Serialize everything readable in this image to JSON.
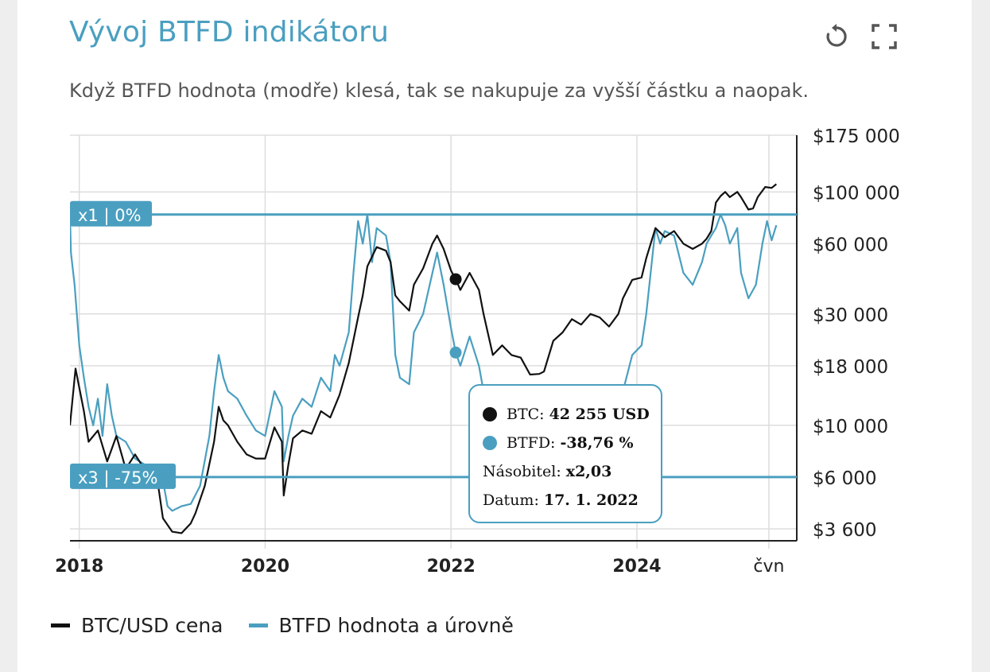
{
  "header": {
    "title": "Vývoj BTFD indikátoru",
    "subtitle": "Když BTFD hodnota (modře) klesá, tak se nakupuje za vyšší částku a naopak.",
    "reset_icon": "reset-icon",
    "fullscreen_icon": "fullscreen-icon"
  },
  "colors": {
    "btc": "#111111",
    "btfd": "#4a9fc0",
    "grid": "#dddddd",
    "axis": "#222222"
  },
  "chart_data": {
    "type": "line",
    "x_ticks": [
      {
        "label": "2018",
        "year": 2018.0
      },
      {
        "label": "2020",
        "year": 2020.0
      },
      {
        "label": "2022",
        "year": 2022.0
      },
      {
        "label": "2024",
        "year": 2024.0
      },
      {
        "label": "čvn",
        "year": 2025.42
      }
    ],
    "y_ticks": [
      {
        "label": "$175 000",
        "value": 175000
      },
      {
        "label": "$100 000",
        "value": 100000
      },
      {
        "label": "$60 000",
        "value": 60000
      },
      {
        "label": "$30 000",
        "value": 30000
      },
      {
        "label": "$18 000",
        "value": 18000
      },
      {
        "label": "$10 000",
        "value": 10000
      },
      {
        "label": "$6 000",
        "value": 6000
      },
      {
        "label": "$3 600",
        "value": 3600
      }
    ],
    "y_scale": "log",
    "ylim": [
      3200,
      175000
    ],
    "xlim": [
      2017.9,
      2025.72
    ],
    "levels": [
      {
        "label": "x1 | 0%",
        "value": 80000
      },
      {
        "label": "x3 | -75%",
        "value": 6000
      }
    ],
    "series": [
      {
        "name": "BTC/USD cena",
        "key": "btc",
        "points": [
          [
            2017.9,
            10000
          ],
          [
            2017.96,
            17500
          ],
          [
            2018.05,
            11500
          ],
          [
            2018.1,
            8500
          ],
          [
            2018.2,
            9500
          ],
          [
            2018.3,
            7000
          ],
          [
            2018.4,
            9000
          ],
          [
            2018.5,
            6500
          ],
          [
            2018.6,
            7500
          ],
          [
            2018.7,
            6500
          ],
          [
            2018.8,
            6300
          ],
          [
            2018.85,
            5500
          ],
          [
            2018.9,
            4000
          ],
          [
            2019.0,
            3500
          ],
          [
            2019.1,
            3450
          ],
          [
            2019.2,
            3800
          ],
          [
            2019.25,
            4200
          ],
          [
            2019.35,
            5500
          ],
          [
            2019.45,
            8500
          ],
          [
            2019.5,
            12000
          ],
          [
            2019.55,
            10500
          ],
          [
            2019.6,
            10000
          ],
          [
            2019.7,
            8500
          ],
          [
            2019.8,
            7500
          ],
          [
            2019.9,
            7200
          ],
          [
            2020.0,
            7200
          ],
          [
            2020.1,
            9800
          ],
          [
            2020.18,
            8500
          ],
          [
            2020.2,
            5000
          ],
          [
            2020.25,
            6800
          ],
          [
            2020.3,
            8800
          ],
          [
            2020.4,
            9500
          ],
          [
            2020.5,
            9200
          ],
          [
            2020.6,
            11500
          ],
          [
            2020.7,
            10800
          ],
          [
            2020.8,
            13500
          ],
          [
            2020.9,
            18500
          ],
          [
            2021.0,
            29000
          ],
          [
            2021.05,
            36000
          ],
          [
            2021.1,
            48000
          ],
          [
            2021.2,
            58000
          ],
          [
            2021.3,
            56000
          ],
          [
            2021.35,
            50000
          ],
          [
            2021.4,
            36000
          ],
          [
            2021.45,
            34000
          ],
          [
            2021.55,
            31000
          ],
          [
            2021.6,
            40000
          ],
          [
            2021.7,
            47000
          ],
          [
            2021.8,
            60000
          ],
          [
            2021.85,
            65000
          ],
          [
            2021.92,
            57000
          ],
          [
            2022.0,
            46000
          ],
          [
            2022.05,
            42255
          ],
          [
            2022.1,
            38000
          ],
          [
            2022.2,
            45000
          ],
          [
            2022.3,
            38000
          ],
          [
            2022.35,
            30000
          ],
          [
            2022.45,
            20000
          ],
          [
            2022.55,
            22000
          ],
          [
            2022.65,
            20000
          ],
          [
            2022.75,
            19500
          ],
          [
            2022.85,
            16500
          ],
          [
            2022.95,
            16600
          ],
          [
            2023.0,
            17000
          ],
          [
            2023.1,
            23000
          ],
          [
            2023.2,
            25000
          ],
          [
            2023.3,
            28500
          ],
          [
            2023.4,
            27000
          ],
          [
            2023.5,
            30000
          ],
          [
            2023.6,
            29000
          ],
          [
            2023.7,
            26500
          ],
          [
            2023.8,
            30000
          ],
          [
            2023.85,
            35000
          ],
          [
            2023.95,
            42000
          ],
          [
            2024.05,
            43000
          ],
          [
            2024.1,
            52000
          ],
          [
            2024.2,
            70000
          ],
          [
            2024.3,
            64000
          ],
          [
            2024.4,
            68000
          ],
          [
            2024.5,
            60000
          ],
          [
            2024.6,
            57000
          ],
          [
            2024.7,
            60000
          ],
          [
            2024.75,
            63000
          ],
          [
            2024.8,
            68000
          ],
          [
            2024.85,
            90000
          ],
          [
            2024.9,
            96000
          ],
          [
            2024.95,
            100000
          ],
          [
            2025.0,
            95000
          ],
          [
            2025.08,
            100000
          ],
          [
            2025.12,
            95000
          ],
          [
            2025.2,
            84000
          ],
          [
            2025.25,
            85000
          ],
          [
            2025.3,
            95000
          ],
          [
            2025.38,
            105000
          ],
          [
            2025.45,
            104000
          ],
          [
            2025.5,
            108000
          ]
        ]
      },
      {
        "name": "BTFD hodnota a úrovně",
        "key": "btfd",
        "points": [
          [
            2017.9,
            80000
          ],
          [
            2017.91,
            55000
          ],
          [
            2017.95,
            40000
          ],
          [
            2018.0,
            22000
          ],
          [
            2018.05,
            16000
          ],
          [
            2018.1,
            12000
          ],
          [
            2018.15,
            10000
          ],
          [
            2018.2,
            13000
          ],
          [
            2018.25,
            9000
          ],
          [
            2018.3,
            15000
          ],
          [
            2018.35,
            11000
          ],
          [
            2018.4,
            9000
          ],
          [
            2018.5,
            8500
          ],
          [
            2018.6,
            7200
          ],
          [
            2018.7,
            6800
          ],
          [
            2018.8,
            6300
          ],
          [
            2018.9,
            5800
          ],
          [
            2018.95,
            4500
          ],
          [
            2019.0,
            4300
          ],
          [
            2019.1,
            4500
          ],
          [
            2019.2,
            4600
          ],
          [
            2019.3,
            5500
          ],
          [
            2019.4,
            9000
          ],
          [
            2019.45,
            14000
          ],
          [
            2019.5,
            20000
          ],
          [
            2019.55,
            16000
          ],
          [
            2019.6,
            14000
          ],
          [
            2019.7,
            13000
          ],
          [
            2019.8,
            11000
          ],
          [
            2019.9,
            9500
          ],
          [
            2020.0,
            9000
          ],
          [
            2020.1,
            14000
          ],
          [
            2020.18,
            12000
          ],
          [
            2020.2,
            7000
          ],
          [
            2020.25,
            9000
          ],
          [
            2020.3,
            11000
          ],
          [
            2020.4,
            13000
          ],
          [
            2020.5,
            12000
          ],
          [
            2020.6,
            16000
          ],
          [
            2020.7,
            14000
          ],
          [
            2020.75,
            20000
          ],
          [
            2020.8,
            18000
          ],
          [
            2020.9,
            25000
          ],
          [
            2020.95,
            45000
          ],
          [
            2021.0,
            75000
          ],
          [
            2021.05,
            60000
          ],
          [
            2021.1,
            80000
          ],
          [
            2021.15,
            50000
          ],
          [
            2021.2,
            70000
          ],
          [
            2021.3,
            65000
          ],
          [
            2021.35,
            50000
          ],
          [
            2021.4,
            20000
          ],
          [
            2021.45,
            16000
          ],
          [
            2021.55,
            15000
          ],
          [
            2021.6,
            25000
          ],
          [
            2021.7,
            30000
          ],
          [
            2021.8,
            45000
          ],
          [
            2021.85,
            55000
          ],
          [
            2021.92,
            40000
          ],
          [
            2022.0,
            26000
          ],
          [
            2022.05,
            20500
          ],
          [
            2022.1,
            18000
          ],
          [
            2022.2,
            24000
          ],
          [
            2022.3,
            18000
          ],
          [
            2022.35,
            14000
          ]
        ],
        "points_b": [
          [
            2023.85,
            14000
          ],
          [
            2023.95,
            20000
          ],
          [
            2024.05,
            22000
          ],
          [
            2024.1,
            30000
          ],
          [
            2024.2,
            70000
          ],
          [
            2024.25,
            60000
          ],
          [
            2024.3,
            68000
          ],
          [
            2024.4,
            65000
          ],
          [
            2024.5,
            45000
          ],
          [
            2024.6,
            40000
          ],
          [
            2024.7,
            50000
          ],
          [
            2024.75,
            60000
          ],
          [
            2024.8,
            65000
          ],
          [
            2024.85,
            70000
          ],
          [
            2024.9,
            80000
          ],
          [
            2024.95,
            72000
          ],
          [
            2025.0,
            60000
          ],
          [
            2025.08,
            70000
          ],
          [
            2025.12,
            45000
          ],
          [
            2025.2,
            35000
          ],
          [
            2025.28,
            40000
          ],
          [
            2025.35,
            60000
          ],
          [
            2025.4,
            75000
          ],
          [
            2025.45,
            62000
          ],
          [
            2025.5,
            72000
          ]
        ]
      }
    ],
    "hover": {
      "year": 2022.05,
      "btc": 42255,
      "btfd_plot": 20500
    }
  },
  "tooltip": {
    "btc_label": "BTC:",
    "btc_value": "42 255 USD",
    "btfd_label": "BTFD:",
    "btfd_value": "-38,76 %",
    "mult_label": "Násobitel:",
    "mult_value": "x2,03",
    "date_label": "Datum:",
    "date_value": "17. 1. 2022"
  },
  "legend": [
    {
      "label": "BTC/USD cena",
      "color": "#111111"
    },
    {
      "label": "BTFD hodnota a úrovně",
      "color": "#4a9fc0"
    }
  ]
}
